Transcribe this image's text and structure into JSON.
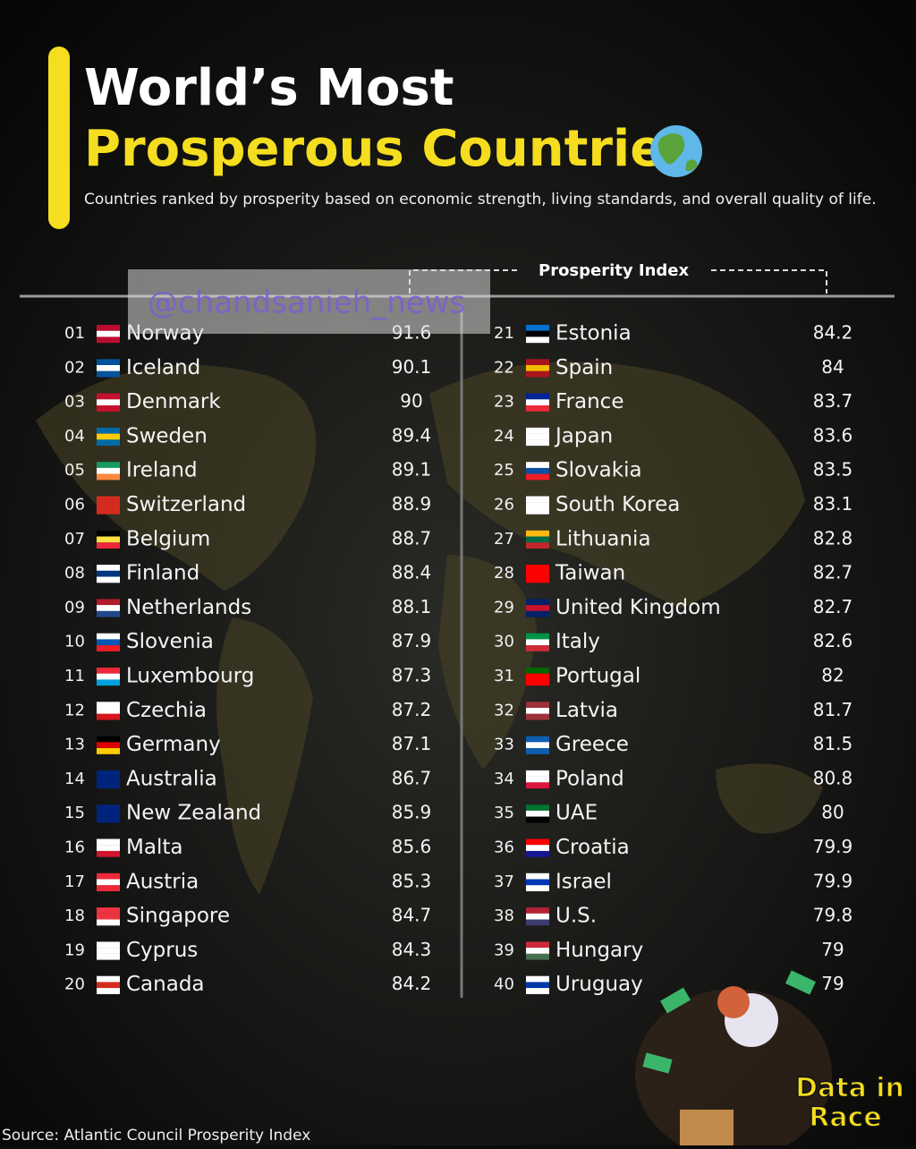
{
  "header": {
    "title_line1": "World’s Most",
    "title_line2": "Prosperous Countries",
    "subtitle": "Countries ranked by prosperity based on economic strength, living standards, and overall quality of life."
  },
  "column_header": "Prosperity Index",
  "watermark": "@chandsanieh_news",
  "table": {
    "rows": [
      [
        "01",
        "Norway",
        91.6
      ],
      [
        "02",
        "Iceland",
        90.1
      ],
      [
        "03",
        "Denmark",
        90
      ],
      [
        "04",
        "Sweden",
        89.4
      ],
      [
        "05",
        "Ireland",
        89.1
      ],
      [
        "06",
        "Switzerland",
        88.9
      ],
      [
        "07",
        "Belgium",
        88.7
      ],
      [
        "08",
        "Finland",
        88.4
      ],
      [
        "09",
        "Netherlands",
        88.1
      ],
      [
        "10",
        "Slovenia",
        87.9
      ],
      [
        "11",
        "Luxembourg",
        87.3
      ],
      [
        "12",
        "Czechia",
        87.2
      ],
      [
        "13",
        "Germany",
        87.1
      ],
      [
        "14",
        "Australia",
        86.7
      ],
      [
        "15",
        "New Zealand",
        85.9
      ],
      [
        "16",
        "Malta",
        85.6
      ],
      [
        "17",
        "Austria",
        85.3
      ],
      [
        "18",
        "Singapore",
        84.7
      ],
      [
        "19",
        "Cyprus",
        84.3
      ],
      [
        "20",
        "Canada",
        84.2
      ],
      [
        "21",
        "Estonia",
        84.2
      ],
      [
        "22",
        "Spain",
        84
      ],
      [
        "23",
        "France",
        83.7
      ],
      [
        "24",
        "Japan",
        83.6
      ],
      [
        "25",
        "Slovakia",
        83.5
      ],
      [
        "26",
        "South Korea",
        83.1
      ],
      [
        "27",
        "Lithuania",
        82.8
      ],
      [
        "28",
        "Taiwan",
        82.7
      ],
      [
        "29",
        "United Kingdom",
        82.7
      ],
      [
        "30",
        "Italy",
        82.6
      ],
      [
        "31",
        "Portugal",
        82
      ],
      [
        "32",
        "Latvia",
        81.7
      ],
      [
        "33",
        "Greece",
        81.5
      ],
      [
        "34",
        "Poland",
        80.8
      ],
      [
        "35",
        "UAE",
        80
      ],
      [
        "36",
        "Croatia",
        79.9
      ],
      [
        "37",
        "Israel",
        79.9
      ],
      [
        "38",
        "U.S.",
        79.8
      ],
      [
        "39",
        "Hungary",
        79
      ],
      [
        "40",
        "Uruguay",
        79
      ]
    ]
  },
  "logo": {
    "line1": "Data in",
    "line2": "Race"
  },
  "source": "Source: Atlantic Council Prosperity Index"
}
